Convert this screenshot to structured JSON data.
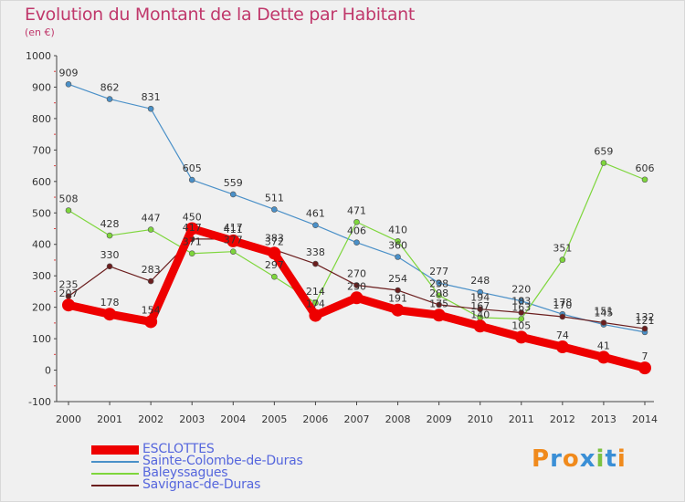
{
  "chart_data": {
    "type": "line",
    "title": "Evolution du Montant de la Dette par Habitant",
    "subtitle": "(en €)",
    "x": [
      "2000",
      "2001",
      "2002",
      "2003",
      "2004",
      "2005",
      "2006",
      "2007",
      "2008",
      "2009",
      "2010",
      "2011",
      "2012",
      "2013",
      "2014"
    ],
    "ylim": [
      -100,
      1000
    ],
    "yticks": [
      -100,
      0,
      100,
      200,
      300,
      400,
      500,
      600,
      700,
      800,
      900,
      1000
    ],
    "grid": false,
    "legend_placement": "bottom-left",
    "series": [
      {
        "name": "ESCLOTTES",
        "color": "#ee0000",
        "values": [
          207,
          178,
          154,
          450,
          411,
          372,
          174,
          230,
          191,
          175,
          140,
          105,
          74,
          41,
          7
        ]
      },
      {
        "name": "Sainte-Colombe-de-Duras",
        "color": "#4a90c8",
        "values": [
          909,
          862,
          831,
          605,
          559,
          511,
          461,
          406,
          360,
          277,
          248,
          220,
          178,
          145,
          121
        ]
      },
      {
        "name": "Baleyssagues",
        "color": "#7ed63c",
        "values": [
          508,
          428,
          447,
          371,
          377,
          297,
          214,
          471,
          410,
          238,
          167,
          163,
          351,
          659,
          606
        ]
      },
      {
        "name": "Savignac-de-Duras",
        "color": "#6b1e1e",
        "values": [
          235,
          330,
          283,
          417,
          417,
          383,
          338,
          270,
          254,
          208,
          194,
          183,
          170,
          151,
          132
        ]
      }
    ]
  },
  "logo": {
    "text": "Proxiti",
    "colors": [
      "#f08a1c",
      "#3a8fd6",
      "#f08a1c",
      "#3a8fd6",
      "#7cc242",
      "#3a8fd6",
      "#f08a1c"
    ]
  }
}
